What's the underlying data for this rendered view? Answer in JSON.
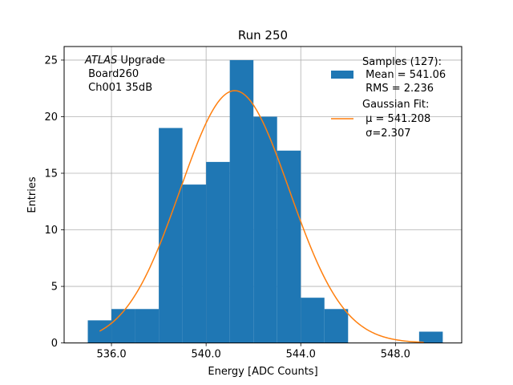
{
  "chart_data": {
    "type": "histogram",
    "title": "Run 250",
    "xlabel": "Energy [ADC Counts]",
    "ylabel": "Entries",
    "xlim": [
      534.0,
      550.8
    ],
    "ylim": [
      0,
      26.2
    ],
    "grid": true,
    "xticks": [
      536.0,
      540.0,
      544.0,
      548.0
    ],
    "xtick_labels": [
      "536.0",
      "540.0",
      "544.0",
      "548.0"
    ],
    "yticks": [
      0,
      5,
      10,
      15,
      20,
      25
    ],
    "ytick_labels": [
      "0",
      "5",
      "10",
      "15",
      "20",
      "25"
    ],
    "bin_width": 1.0,
    "bins": [
      {
        "left": 535,
        "count": 2
      },
      {
        "left": 536,
        "count": 3
      },
      {
        "left": 537,
        "count": 3
      },
      {
        "left": 538,
        "count": 19
      },
      {
        "left": 539,
        "count": 14
      },
      {
        "left": 540,
        "count": 16
      },
      {
        "left": 541,
        "count": 25
      },
      {
        "left": 542,
        "count": 20
      },
      {
        "left": 543,
        "count": 17
      },
      {
        "left": 544,
        "count": 4
      },
      {
        "left": 545,
        "count": 3
      },
      {
        "left": 549,
        "count": 1
      }
    ],
    "fit": {
      "type": "gaussian",
      "mu": 541.208,
      "sigma": 2.307,
      "amplitude": 22.3,
      "x_range": [
        535.5,
        549.2
      ]
    },
    "colors": {
      "bars": "#1f77b4",
      "fit": "#ff7f0e",
      "grid": "#b0b0b0"
    },
    "legend": {
      "placement": "top-right",
      "samples_lines": [
        "Samples (127):",
        " Mean = 541.06",
        " RMS = 2.236"
      ],
      "fit_lines": [
        "Gaussian Fit:",
        " μ = 541.208",
        " σ=2.307"
      ]
    },
    "annotation": {
      "placement": "top-left",
      "italic_part": "ATLAS",
      "rest_part": " Upgrade",
      "line2": " Board260",
      "line3": " Ch001 35dB"
    }
  }
}
